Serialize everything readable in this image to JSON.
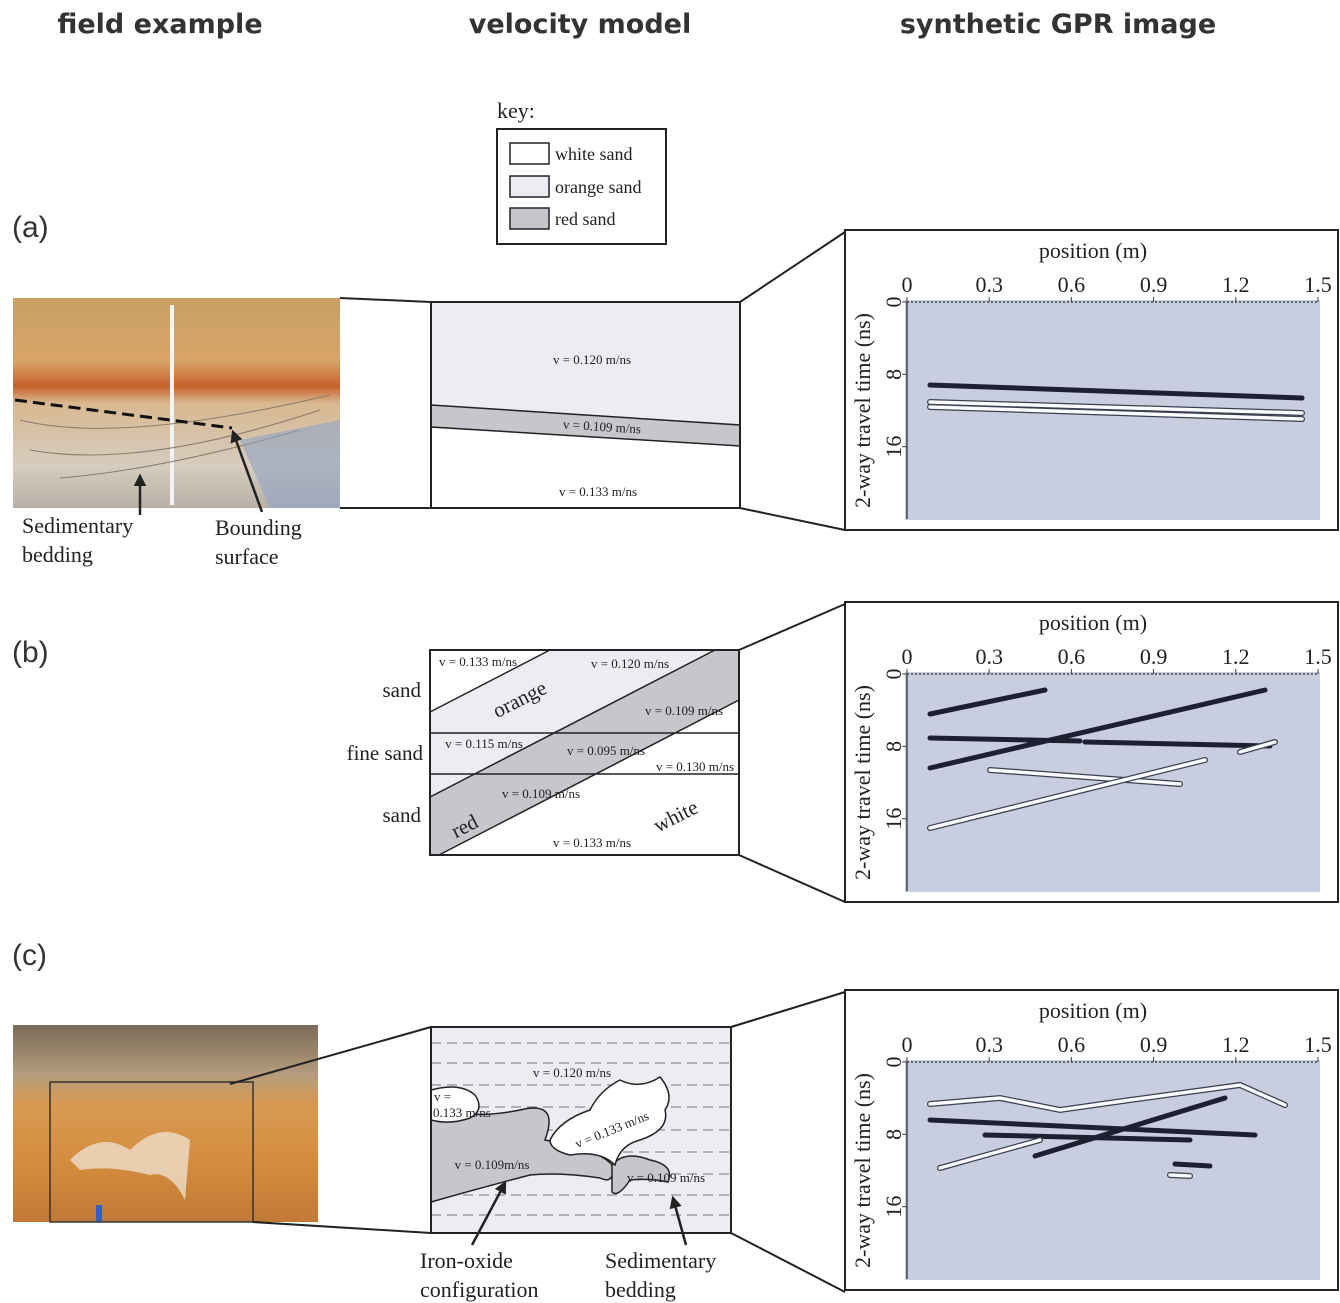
{
  "headers": [
    "field example",
    "velocity model",
    "synthetic GPR image"
  ],
  "key": {
    "title": "key:",
    "items": [
      "white sand",
      "orange sand",
      "red sand"
    ]
  },
  "panels": [
    {
      "label": "(a)",
      "field_annotations": [
        [
          "Sedimentary",
          "bedding"
        ],
        [
          "Bounding",
          "surface"
        ]
      ],
      "velocity_labels": [
        "v = 0.120 m/ns",
        "v = 0.109 m/ns",
        "v = 0.133 m/ns"
      ],
      "gpr": {
        "x_label": "position (m)",
        "y_label": "2-way travel time (ns)",
        "xlim": [
          0,
          1.5
        ],
        "xticks": [
          0,
          0.3,
          0.6,
          0.9,
          1.2,
          1.5
        ],
        "ylim": [
          0,
          24
        ],
        "yticks": [
          0,
          8,
          16
        ]
      }
    },
    {
      "label": "(b)",
      "side_labels": [
        "sand",
        "fine sand",
        "sand"
      ],
      "velocity_labels": [
        "v = 0.133 m/ns",
        "v = 0.120 m/ns",
        "orange",
        "v = 0.109 m/ns",
        "v = 0.115 m/ns",
        "v = 0.095 m/ns",
        "v = 0.130 m/ns",
        "v = 0.109 m/ns",
        "red",
        "white",
        "v = 0.133 m/ns"
      ],
      "gpr": {
        "x_label": "position (m)",
        "y_label": "2-way travel time (ns)",
        "xlim": [
          0,
          1.5
        ],
        "xticks": [
          0,
          0.3,
          0.6,
          0.9,
          1.2,
          1.5
        ],
        "ylim": [
          0,
          24
        ],
        "yticks": [
          0,
          8,
          16
        ]
      }
    },
    {
      "label": "(c)",
      "velocity_labels": [
        "v = 0.120 m/ns",
        [
          "v =",
          "0.133 m/ns"
        ],
        "v = 0.133 m/ns",
        "v = 0.109m/ns",
        "v = 0.109 m/ns"
      ],
      "model_annotations": [
        [
          "Iron-oxide",
          "configuration"
        ],
        [
          "Sedimentary",
          "bedding"
        ]
      ],
      "gpr": {
        "x_label": "position (m)",
        "y_label": "2-way travel time (ns)",
        "xlim": [
          0,
          1.5
        ],
        "xticks": [
          0,
          0.3,
          0.6,
          0.9,
          1.2,
          1.5
        ],
        "ylim": [
          0,
          24
        ],
        "yticks": [
          0,
          8,
          16
        ]
      }
    }
  ]
}
